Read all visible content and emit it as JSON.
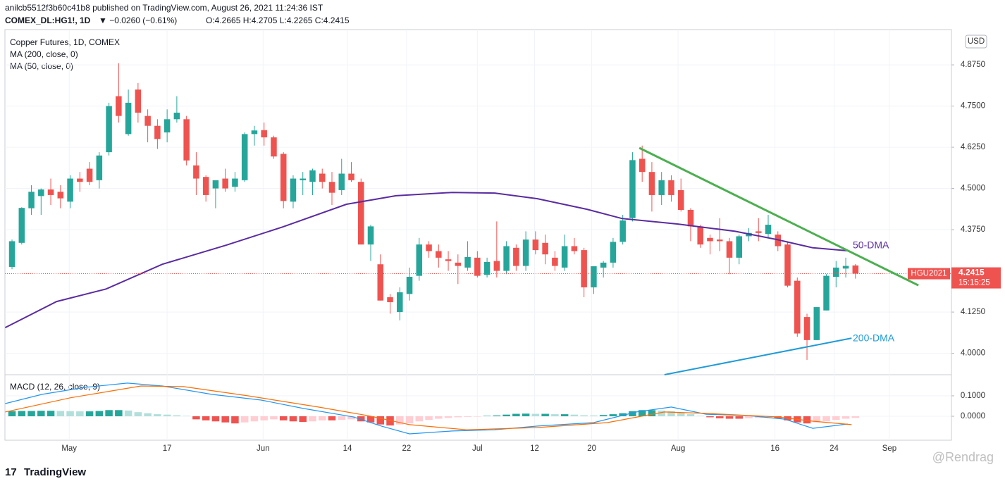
{
  "header": {
    "publisher": "anilcb5512f3b60c41b8 published on TradingView.com, August 26, 2021 11:24:36 IST",
    "symbol": "COMEX_DL:HG1!, 1D",
    "change": "▼ −0.0260 (−0.61%)",
    "ohlc": "O:4.2665 H:4.2705 L:4.2265 C:4.2415",
    "legend": [
      "Copper Futures, 1D, COMEX",
      "MA (200, close, 0)",
      "MA (50, close, 0)"
    ],
    "macd_legend": "MACD (12, 26, close, 9)",
    "currency": "USD",
    "contract": "HGU2021",
    "countdown": "15:15:25",
    "brand": "TradingView",
    "watermark": "@Rendrag"
  },
  "chart_data": {
    "type": "candlestick",
    "up_color": "#26a69a",
    "down_color": "#ef5350",
    "grid": true,
    "xlim": [
      -0.73,
      96.9
    ],
    "xticks": [
      {
        "value": 5.9,
        "label": "May"
      },
      {
        "value": 16.0,
        "label": "17"
      },
      {
        "value": 25.9,
        "label": "Jun"
      },
      {
        "value": 34.6,
        "label": "14"
      },
      {
        "value": 40.7,
        "label": "22"
      },
      {
        "value": 48.0,
        "label": "Jul"
      },
      {
        "value": 53.9,
        "label": "12"
      },
      {
        "value": 59.8,
        "label": "20"
      },
      {
        "value": 68.7,
        "label": "Aug"
      },
      {
        "value": 78.7,
        "label": "16"
      },
      {
        "value": 84.8,
        "label": "24"
      },
      {
        "value": 90.5,
        "label": "Sep"
      }
    ],
    "ylim": [
      3.935,
      4.982
    ],
    "yticks": [
      {
        "value": 4.875,
        "label": "4.8750"
      },
      {
        "value": 4.75,
        "label": "4.7500"
      },
      {
        "value": 4.625,
        "label": "4.6250"
      },
      {
        "value": 4.5,
        "label": "4.5000"
      },
      {
        "value": 4.375,
        "label": "4.3750"
      },
      {
        "value": 4.125,
        "label": "4.1250"
      },
      {
        "value": 4.0,
        "label": "4.0000"
      }
    ],
    "last_price": 4.2415,
    "open": [
      4.262,
      4.335,
      4.44,
      4.477,
      4.497,
      4.49,
      4.46,
      4.53,
      4.56,
      4.525,
      4.61,
      4.78,
      4.665,
      4.8,
      4.72,
      4.69,
      4.67,
      4.71,
      4.71,
      4.57,
      4.535,
      4.5,
      4.53,
      4.505,
      4.525,
      4.665,
      4.677,
      4.655,
      4.605,
      4.46,
      4.525,
      4.52,
      4.545,
      4.52,
      4.495,
      4.545,
      4.52,
      4.33,
      4.27,
      4.17,
      4.125,
      4.18,
      4.235,
      4.33,
      4.31,
      4.285,
      4.275,
      4.26,
      4.29,
      4.238,
      4.28,
      4.25,
      4.32,
      4.265,
      4.345,
      4.335,
      4.29,
      4.26,
      4.325,
      4.313,
      4.2,
      4.26,
      4.275,
      4.338,
      4.41,
      4.59,
      4.55,
      4.48,
      4.525,
      4.495,
      4.435,
      4.385,
      4.35,
      4.345,
      4.34,
      4.29,
      4.355,
      4.37,
      4.362,
      4.36,
      4.33,
      4.22,
      4.11,
      4.04,
      4.13,
      4.232,
      4.257,
      4.2665
    ],
    "high": [
      4.345,
      4.443,
      4.51,
      4.5,
      4.53,
      4.51,
      4.54,
      4.55,
      4.58,
      4.61,
      4.76,
      4.88,
      4.8,
      4.82,
      4.74,
      4.71,
      4.74,
      4.78,
      4.72,
      4.61,
      4.54,
      4.52,
      4.56,
      4.55,
      4.67,
      4.69,
      4.7,
      4.66,
      4.61,
      4.54,
      4.55,
      4.56,
      4.56,
      4.55,
      4.59,
      4.58,
      4.53,
      4.39,
      4.3,
      4.18,
      4.2,
      4.26,
      4.35,
      4.34,
      4.33,
      4.31,
      4.3,
      4.34,
      4.31,
      4.29,
      4.4,
      4.34,
      4.33,
      4.37,
      4.37,
      4.36,
      4.31,
      4.36,
      4.35,
      4.32,
      4.26,
      4.28,
      4.35,
      4.42,
      4.61,
      4.63,
      4.58,
      4.55,
      4.54,
      4.53,
      4.44,
      4.39,
      4.36,
      4.41,
      4.35,
      4.36,
      4.38,
      4.41,
      4.42,
      4.37,
      4.34,
      4.23,
      4.12,
      4.14,
      4.24,
      4.28,
      4.29,
      4.2705
    ],
    "low": [
      4.255,
      4.33,
      4.42,
      4.42,
      4.45,
      4.44,
      4.44,
      4.49,
      4.51,
      4.5,
      4.6,
      4.7,
      4.66,
      4.7,
      4.64,
      4.62,
      4.64,
      4.7,
      4.57,
      4.48,
      4.46,
      4.44,
      4.49,
      4.49,
      4.52,
      4.63,
      4.63,
      4.59,
      4.44,
      4.44,
      4.48,
      4.48,
      4.5,
      4.45,
      4.48,
      4.52,
      4.33,
      4.28,
      4.16,
      4.12,
      4.1,
      4.16,
      4.22,
      4.29,
      4.26,
      4.25,
      4.21,
      4.25,
      4.23,
      4.23,
      4.23,
      4.24,
      4.25,
      4.25,
      4.3,
      4.27,
      4.25,
      4.25,
      4.3,
      4.17,
      4.18,
      4.23,
      4.26,
      4.33,
      4.4,
      4.52,
      4.43,
      4.45,
      4.46,
      4.43,
      4.34,
      4.32,
      4.3,
      4.31,
      4.24,
      4.27,
      4.34,
      4.34,
      4.35,
      4.31,
      4.2,
      4.05,
      3.98,
      4.04,
      4.13,
      4.2,
      4.23,
      4.2265
    ],
    "close": [
      4.34,
      4.441,
      4.49,
      4.497,
      4.48,
      4.47,
      4.53,
      4.52,
      4.52,
      4.6,
      4.75,
      4.72,
      4.76,
      4.73,
      4.69,
      4.65,
      4.71,
      4.73,
      4.585,
      4.53,
      4.48,
      4.525,
      4.5,
      4.53,
      4.665,
      4.676,
      4.655,
      4.597,
      4.462,
      4.53,
      4.53,
      4.555,
      4.52,
      4.487,
      4.545,
      4.525,
      4.33,
      4.385,
      4.16,
      4.155,
      4.185,
      4.232,
      4.33,
      4.31,
      4.29,
      4.28,
      4.265,
      4.292,
      4.235,
      4.277,
      4.25,
      4.325,
      4.265,
      4.345,
      4.313,
      4.3,
      4.265,
      4.325,
      4.31,
      4.2,
      4.264,
      4.275,
      4.338,
      4.403,
      4.586,
      4.55,
      4.48,
      4.525,
      4.48,
      4.435,
      4.385,
      4.33,
      4.34,
      4.34,
      4.29,
      4.355,
      4.365,
      4.365,
      4.39,
      4.325,
      4.205,
      4.06,
      4.04,
      4.14,
      4.235,
      4.26,
      4.265,
      4.2415
    ],
    "ma": [
      {
        "name": "50-DMA",
        "color": "#5a2ca0",
        "x": [
          -0.7,
          4.6,
          9.7,
          15.5,
          22.1,
          27.9,
          34.5,
          39.6,
          45.4,
          49.8,
          54.2,
          59.3,
          62.9,
          68.7,
          74.6,
          78.9,
          82.6,
          86.2
        ],
        "values": [
          4.078,
          4.157,
          4.195,
          4.27,
          4.328,
          4.383,
          4.452,
          4.478,
          4.488,
          4.486,
          4.469,
          4.437,
          4.409,
          4.392,
          4.37,
          4.345,
          4.32,
          4.311
        ]
      },
      {
        "name": "200-DMA",
        "color": "#1e9bd7",
        "x": [
          67.3,
          86.6
        ],
        "values": [
          3.935,
          4.046
        ]
      }
    ],
    "trendline": {
      "color": "#4caf50",
      "x": [
        64.7,
        93.5
      ],
      "values": [
        4.623,
        4.206
      ]
    },
    "macd": {
      "ylim": [
        -0.117,
        0.203
      ],
      "yticks": [
        {
          "value": 0.1,
          "label": "0.1000"
        },
        {
          "value": 0,
          "label": "0.0000"
        }
      ],
      "histogram": [
        0.025,
        0.026,
        0.026,
        0.027,
        0.027,
        0.026,
        0.025,
        0.024,
        0.024,
        0.026,
        0.03,
        0.03,
        0.028,
        0.02,
        0.015,
        0.01,
        0.008,
        0.005,
        0.002,
        -0.015,
        -0.02,
        -0.025,
        -0.03,
        -0.035,
        -0.03,
        -0.025,
        -0.02,
        -0.015,
        -0.02,
        -0.025,
        -0.028,
        -0.025,
        -0.02,
        -0.02,
        -0.018,
        -0.015,
        -0.025,
        -0.03,
        -0.04,
        -0.045,
        -0.04,
        -0.035,
        -0.025,
        -0.018,
        -0.012,
        -0.008,
        -0.005,
        -0.003,
        -0.002,
        0.002,
        0.004,
        0.008,
        0.012,
        0.013,
        0.012,
        0.012,
        0.01,
        0.01,
        0.008,
        0.005,
        0.004,
        0.006,
        0.01,
        0.015,
        0.025,
        0.03,
        0.03,
        0.028,
        0.025,
        0.018,
        0.01,
        0.002,
        -0.005,
        -0.01,
        -0.012,
        -0.012,
        -0.01,
        -0.008,
        -0.006,
        -0.01,
        -0.02,
        -0.03,
        -0.035,
        -0.03,
        -0.025,
        -0.018,
        -0.012,
        -0.008
      ],
      "hist_colors": [
        "#26a69a",
        "#b2dfdb",
        "#ef5350",
        "#ffcdd2"
      ],
      "lines": [
        {
          "color": "#2196f3",
          "x": [
            -0.7,
            3.1,
            7.5,
            11.9,
            15.5,
            20.6,
            25.7,
            30.1,
            35.2,
            38.1,
            41.0,
            45.4,
            49.8,
            54.2,
            60.0,
            64.4,
            68.0,
            71.6,
            76.0,
            79.7,
            82.6,
            86.2
          ],
          "values": [
            0.062,
            0.107,
            0.141,
            0.162,
            0.148,
            0.107,
            0.079,
            0.038,
            -0.003,
            -0.048,
            -0.086,
            -0.072,
            -0.066,
            -0.048,
            -0.031,
            0.021,
            0.045,
            0.01,
            0.003,
            -0.014,
            -0.059,
            -0.038
          ]
        },
        {
          "color": "#ff6d00",
          "x": [
            -0.7,
            6.0,
            13.3,
            17.7,
            24.3,
            31.6,
            36.7,
            41.0,
            46.9,
            54.2,
            61.4,
            67.3,
            71.6,
            78.9,
            82.6,
            86.6
          ],
          "values": [
            0.021,
            0.09,
            0.148,
            0.145,
            0.1,
            0.045,
            0.003,
            -0.041,
            -0.066,
            -0.055,
            -0.031,
            0.021,
            0.014,
            -0.003,
            -0.024,
            -0.041
          ]
        }
      ]
    }
  }
}
